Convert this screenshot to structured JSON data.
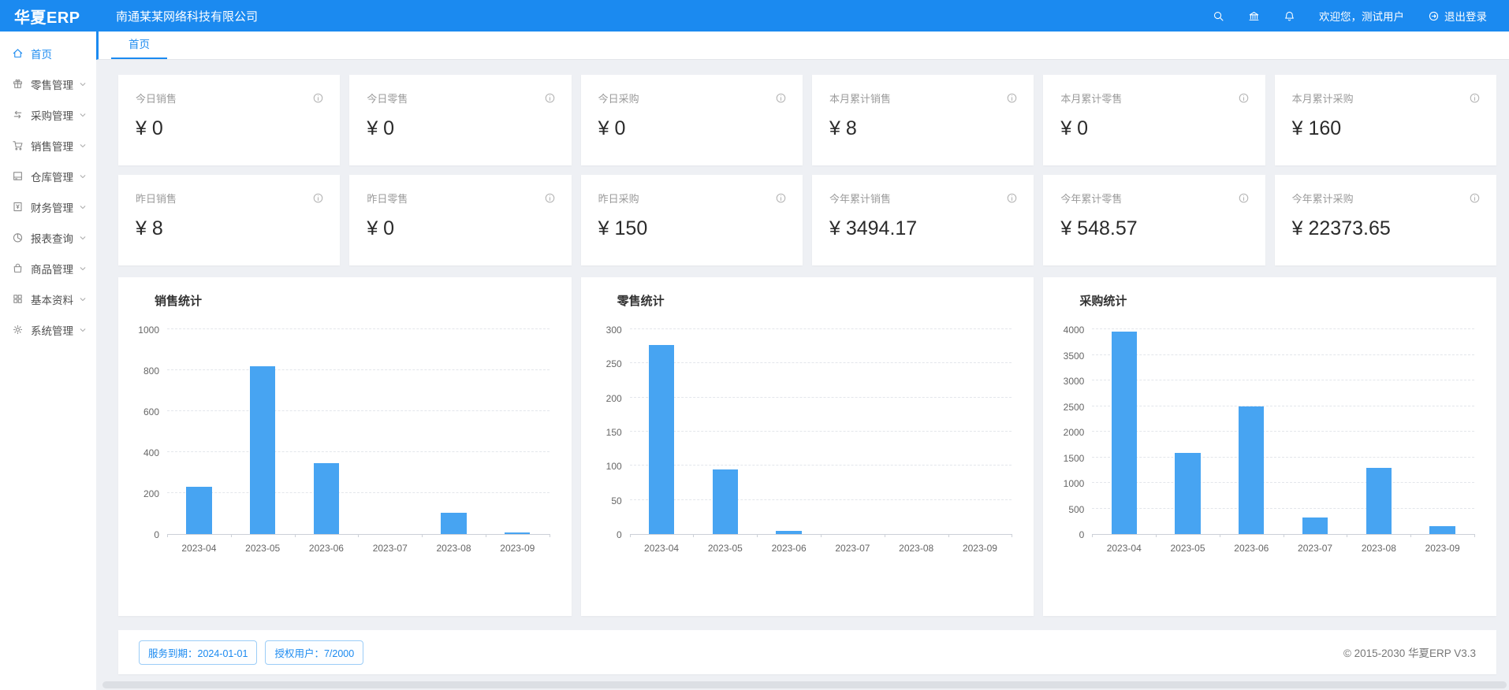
{
  "colors": {
    "primary": "#1b8af0",
    "bar": "#47a4f2",
    "header_bg": "#1b8af0"
  },
  "header": {
    "logo": "华夏ERP",
    "company": "南通某某网络科技有限公司",
    "welcome": "欢迎您，测试用户",
    "logout_label": "退出登录",
    "icons": [
      "search-icon",
      "bank-icon",
      "bell-icon",
      "logout-icon"
    ]
  },
  "tabs": [
    {
      "label": "首页",
      "active": true
    }
  ],
  "sidebar": {
    "items": [
      {
        "key": "home",
        "label": "首页",
        "icon": "home-icon",
        "active": true,
        "expandable": false
      },
      {
        "key": "retail",
        "label": "零售管理",
        "icon": "gift-icon",
        "active": false,
        "expandable": true
      },
      {
        "key": "purchase",
        "label": "采购管理",
        "icon": "swap-icon",
        "active": false,
        "expandable": true
      },
      {
        "key": "sales",
        "label": "销售管理",
        "icon": "cart-icon",
        "active": false,
        "expandable": true
      },
      {
        "key": "warehouse",
        "label": "仓库管理",
        "icon": "storage-icon",
        "active": false,
        "expandable": true
      },
      {
        "key": "finance",
        "label": "财务管理",
        "icon": "finance-icon",
        "active": false,
        "expandable": true
      },
      {
        "key": "reports",
        "label": "报表查询",
        "icon": "pie-icon",
        "active": false,
        "expandable": true
      },
      {
        "key": "goods",
        "label": "商品管理",
        "icon": "bag-icon",
        "active": false,
        "expandable": true
      },
      {
        "key": "basic",
        "label": "基本资料",
        "icon": "grid-icon",
        "active": false,
        "expandable": true
      },
      {
        "key": "system",
        "label": "系统管理",
        "icon": "gear-icon",
        "active": false,
        "expandable": true
      }
    ]
  },
  "stats": {
    "rows": [
      [
        {
          "key": "today-sale",
          "label": "今日销售",
          "value": "¥ 0"
        },
        {
          "key": "today-retail",
          "label": "今日零售",
          "value": "¥ 0"
        },
        {
          "key": "today-purchase",
          "label": "今日采购",
          "value": "¥ 0"
        },
        {
          "key": "month-sale",
          "label": "本月累计销售",
          "value": "¥ 8"
        },
        {
          "key": "month-retail",
          "label": "本月累计零售",
          "value": "¥ 0"
        },
        {
          "key": "month-purchase",
          "label": "本月累计采购",
          "value": "¥ 160"
        }
      ],
      [
        {
          "key": "yesterday-sale",
          "label": "昨日销售",
          "value": "¥ 8"
        },
        {
          "key": "yesterday-retail",
          "label": "昨日零售",
          "value": "¥ 0"
        },
        {
          "key": "yesterday-purchase",
          "label": "昨日采购",
          "value": "¥ 150"
        },
        {
          "key": "year-sale",
          "label": "今年累计销售",
          "value": "¥ 3494.17"
        },
        {
          "key": "year-retail",
          "label": "今年累计零售",
          "value": "¥ 548.57"
        },
        {
          "key": "year-purchase",
          "label": "今年累计采购",
          "value": "¥ 22373.65"
        }
      ]
    ]
  },
  "chart_data": [
    {
      "key": "sales",
      "type": "bar",
      "title": "销售统计",
      "categories": [
        "2023-04",
        "2023-05",
        "2023-06",
        "2023-07",
        "2023-08",
        "2023-09"
      ],
      "values": [
        230,
        820,
        345,
        0,
        105,
        8
      ],
      "xlabel": "",
      "ylabel": "",
      "ylim": [
        0,
        1000
      ],
      "yticks": [
        0,
        200,
        400,
        600,
        800,
        1000
      ],
      "grid": "dashed-horizontal",
      "legend": "none"
    },
    {
      "key": "retail",
      "type": "bar",
      "title": "零售统计",
      "categories": [
        "2023-04",
        "2023-05",
        "2023-06",
        "2023-07",
        "2023-08",
        "2023-09"
      ],
      "values": [
        277,
        95,
        5,
        0,
        0,
        0
      ],
      "xlabel": "",
      "ylabel": "",
      "ylim": [
        0,
        300
      ],
      "yticks": [
        0,
        50,
        100,
        150,
        200,
        250,
        300
      ],
      "grid": "dashed-horizontal",
      "legend": "none"
    },
    {
      "key": "purchase",
      "type": "bar",
      "title": "采购统计",
      "categories": [
        "2023-04",
        "2023-05",
        "2023-06",
        "2023-07",
        "2023-08",
        "2023-09"
      ],
      "values": [
        3950,
        1580,
        2500,
        330,
        1300,
        160
      ],
      "xlabel": "",
      "ylabel": "",
      "ylim": [
        0,
        4000
      ],
      "yticks": [
        0,
        500,
        1000,
        1500,
        2000,
        2500,
        3000,
        3500,
        4000
      ],
      "grid": "dashed-horizontal",
      "legend": "none"
    }
  ],
  "footer": {
    "badges": [
      "服务到期：2024-01-01",
      "授权用户：7/2000"
    ],
    "copyright": "© 2015-2030 华夏ERP V3.3"
  }
}
